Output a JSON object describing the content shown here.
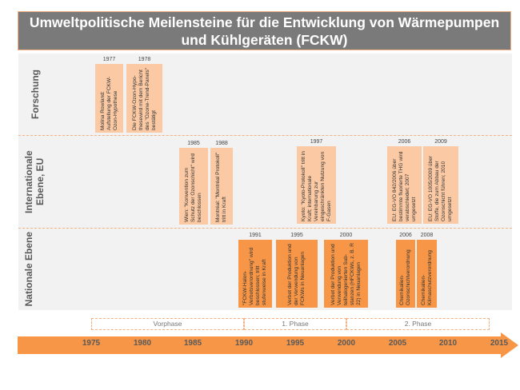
{
  "title": "Umweltpolitische Meilensteine für die Entwicklung von Wärmepumpen und Kühlgeräten (FCKW)",
  "rows": [
    {
      "label": "Forschung"
    },
    {
      "label": "Internationale Ebene, EU"
    },
    {
      "label": "Nationale Ebene"
    }
  ],
  "events": {
    "forschung": [
      {
        "year": "1977",
        "text": "Molina Rowland: Aufstellung der FCKW-Ozon-Hypothese"
      },
      {
        "year": "1978",
        "text": "Die FCKW-Ozon-Hypo-thesewird mit dem Bericht des \"Ozone-Trend-Panels\" bestätigt"
      }
    ],
    "international": [
      {
        "year": "1985",
        "text": "Wien: \"Konvention zum Schutz der Ozonschicht\" wird beschlossen"
      },
      {
        "year": "1988",
        "text": "Montréal: \"Montréal Protokoll\" tritt in Kraft"
      },
      {
        "year": "1997",
        "text": "Kyoto: \"Kyoto-Protokoll\" tritt in Kraft; internationale Vereinbarung zur eingeschränkten Nutzung von F-Gasen"
      },
      {
        "year": "2006",
        "text": "EU: EG-VO 842/2006 über bestimmte fluorierte THG wird verabschiedet; 2007 umgesetzt"
      },
      {
        "year": "2009",
        "text": "EU: EG-VO 1005/2009 über Stoffe, die zum Abbau der Ozonschicht führen; 2010 umgesetzt"
      }
    ],
    "national": [
      {
        "year": "1991",
        "text": "\"FCKW-Halon-Verbotsverordnung\" wird beschlossen; tritt stufenweise in Kraft"
      },
      {
        "year": "1995",
        "text": "Verbot der Produktion und der Verwendung von FCKWs in Neuanlagen"
      },
      {
        "year": "2000",
        "text": "Verbot der Produktion und Verwendung von teilhalogenierten Sub-stanzen (HFCKWs, z. B. R 22) in Neuanlagen"
      },
      {
        "year": "2006",
        "text": "Chemikalien-Ozonschichtverordnung"
      },
      {
        "year": "2008",
        "text": "Chemikalien-Klimaschutzverordnung"
      }
    ]
  },
  "phases": [
    {
      "label": "Vorphase",
      "from": 1975,
      "to": 1990
    },
    {
      "label": "1. Phase",
      "from": 1990,
      "to": 2000
    },
    {
      "label": "2. Phase",
      "from": 2000,
      "to": 2014
    }
  ],
  "axis": {
    "ticks": [
      "1975",
      "1980",
      "1985",
      "1990",
      "1995",
      "2000",
      "2005",
      "2010",
      "2015"
    ]
  },
  "colors": {
    "title_bg": "#7a7a7a",
    "light_box": "#fbc9a3",
    "dark_box": "#f79646",
    "arrow": "#f79646",
    "row_bg": "#f2f2f2"
  }
}
